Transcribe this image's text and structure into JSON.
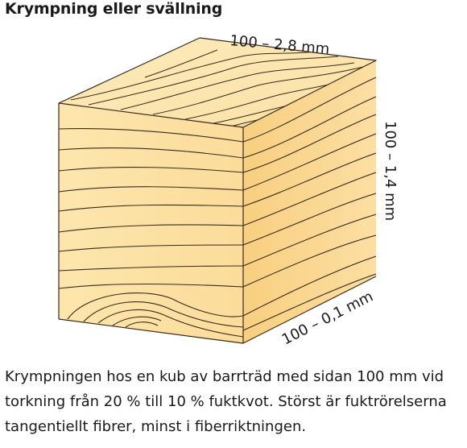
{
  "title": "Krympning eller svällning",
  "labels": {
    "top_edge": "100 – 2,8 mm",
    "right_edge": "100 – 1,4 mm",
    "bottom_edge": "100 – 0,1 mm"
  },
  "caption_lines": [
    "Krympningen hos en kub av barrträd med sidan 100 mm vid",
    "torkning från 20 % till 10 % fuktkvot. Störst är fuktrörelserna",
    "tangentiellt fibrer, minst i fiberriktningen."
  ],
  "colors": {
    "wood_front": "#fce3a6",
    "wood_side": "#fad58c",
    "wood_top": "#fde8b2",
    "grain": "#3a2a1a"
  }
}
